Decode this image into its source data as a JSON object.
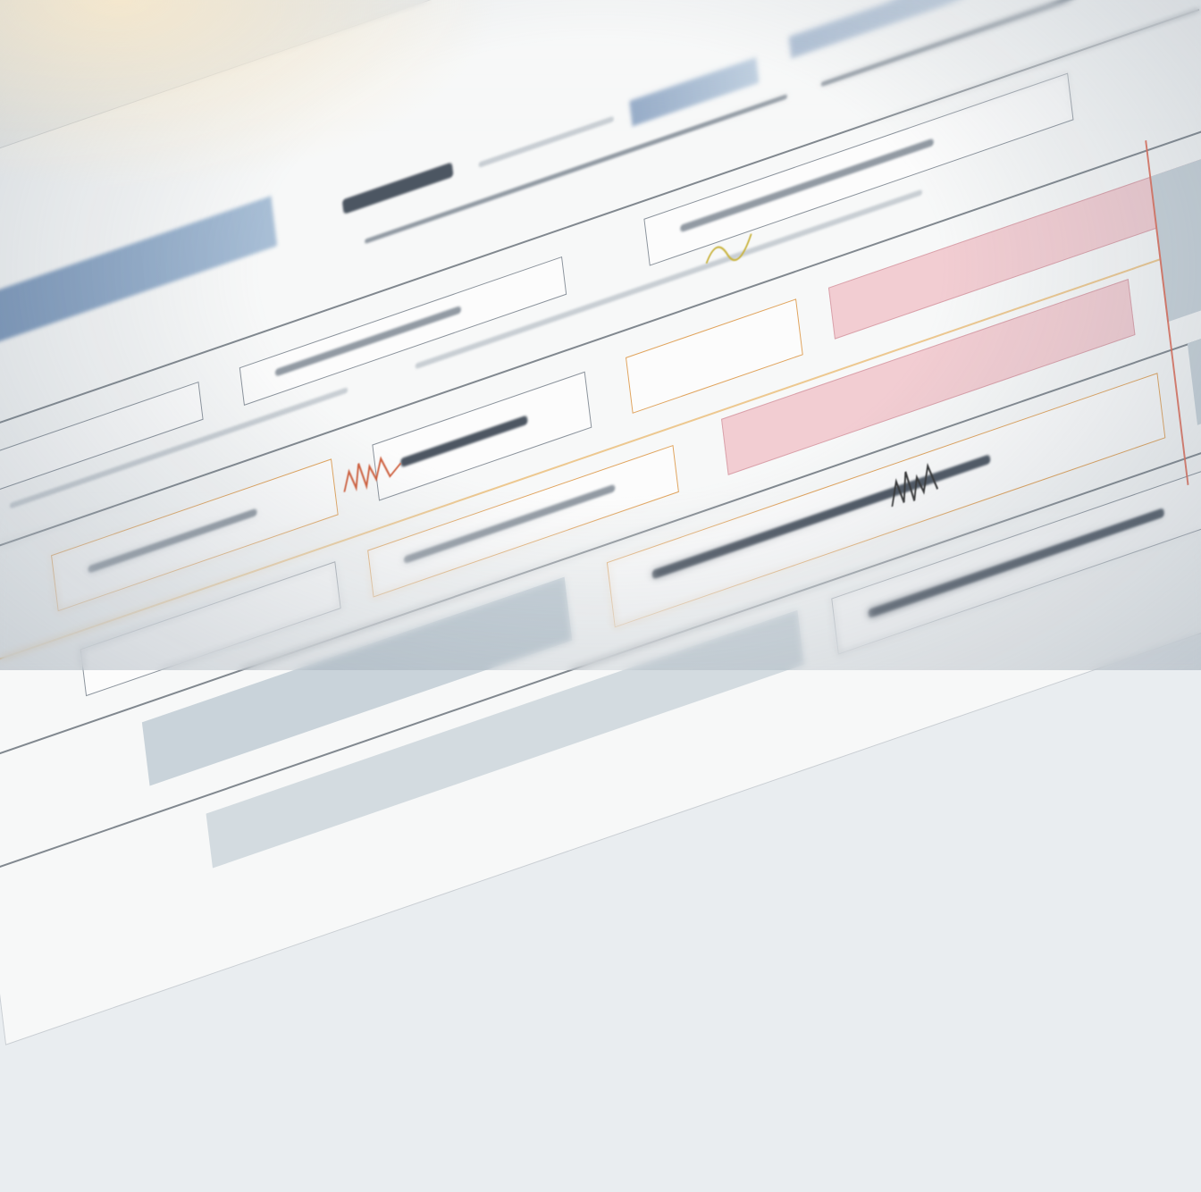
{
  "colors": {
    "paper": "#f7f8f8",
    "header_blue": "#6f8db4",
    "highlight_pink": "#f2cdd2",
    "accent_orange": "#e0a35c",
    "accent_red": "#e06a55",
    "row_grey": "#c9d3da"
  }
}
